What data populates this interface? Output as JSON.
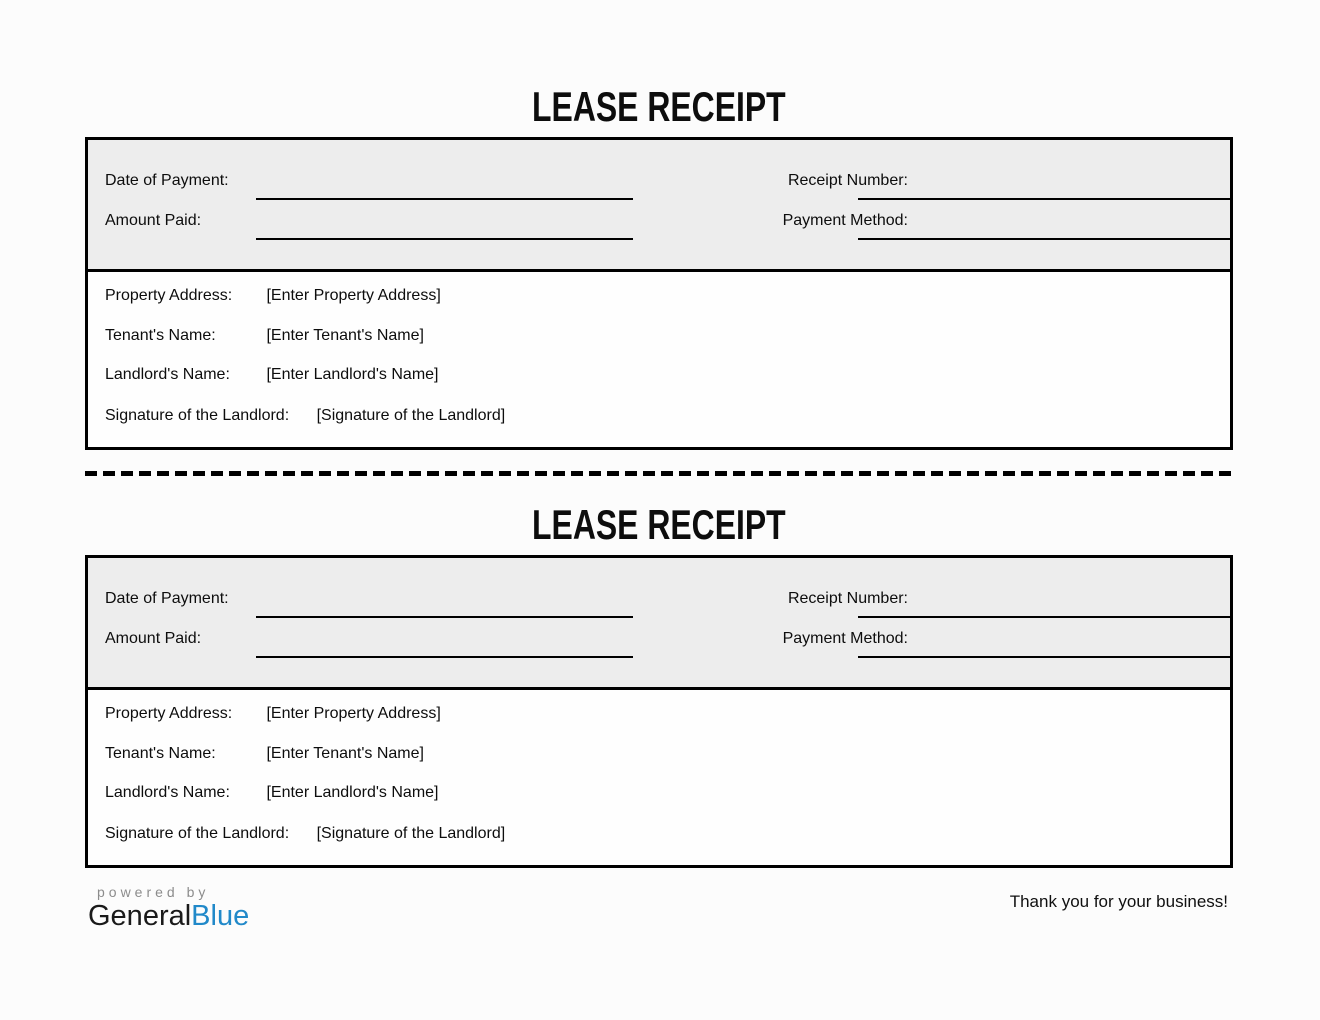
{
  "receipts": [
    {
      "title": "LEASE RECEIPT",
      "date_label": "Date of Payment:",
      "date_value": "",
      "receipt_no_label": "Receipt Number:",
      "receipt_no_value": "",
      "amount_label": "Amount Paid:",
      "amount_value": "",
      "method_label": "Payment Method:",
      "method_value": "",
      "property_label": "Property Address:",
      "property_value": "[Enter Property Address]",
      "tenant_label": "Tenant's Name:",
      "tenant_value": "[Enter Tenant's Name]",
      "landlord_label": "Landlord's Name:",
      "landlord_value": "[Enter Landlord's Name]",
      "signature_label": "Signature of the Landlord:",
      "signature_value": "[Signature of the Landlord]"
    },
    {
      "title": "LEASE RECEIPT",
      "date_label": "Date of Payment:",
      "date_value": "",
      "receipt_no_label": "Receipt Number:",
      "receipt_no_value": "",
      "amount_label": "Amount Paid:",
      "amount_value": "",
      "method_label": "Payment Method:",
      "method_value": "",
      "property_label": "Property Address:",
      "property_value": "[Enter Property Address]",
      "tenant_label": "Tenant's Name:",
      "tenant_value": "[Enter Tenant's Name]",
      "landlord_label": "Landlord's Name:",
      "landlord_value": "[Enter Landlord's Name]",
      "signature_label": "Signature of the Landlord:",
      "signature_value": "[Signature of the Landlord]"
    }
  ],
  "footer": {
    "powered_by": "powered by",
    "brand_general": "General",
    "brand_blue": "Blue",
    "thank_you": "Thank you for your business!"
  },
  "colors": {
    "page_background": "#FCFCFC",
    "panel_gray": "#EDEDED",
    "border_black": "#000000",
    "brand_blue": "#2189C9",
    "muted_gray_text": "#8C8C8C"
  }
}
